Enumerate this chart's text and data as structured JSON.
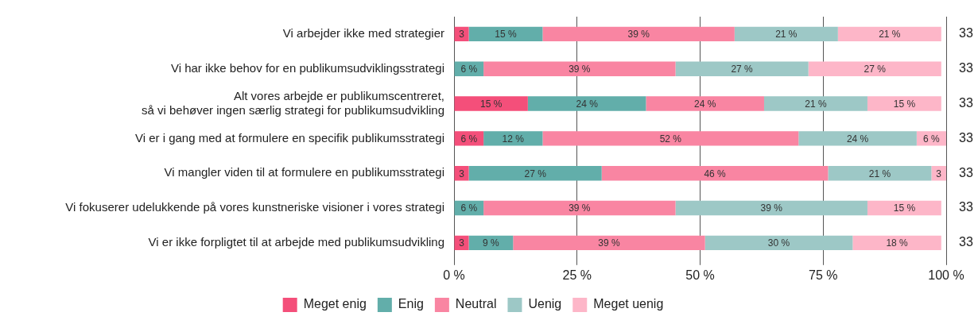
{
  "chart_data": {
    "type": "bar",
    "orientation": "horizontal",
    "stacked": true,
    "categories": [
      "Vi arbejder ikke med strategier",
      "Vi har ikke behov for en publikumsudviklingsstrategi",
      "Alt vores arbejde er publikumscentreret,\nså vi behøver ingen særlig strategi for publikumsudvikling",
      "Vi er i gang med at formulere en specifik publikumsstrategi",
      "Vi mangler viden til at formulere en publikumsstrategi",
      "Vi fokuserer udelukkende på vores kunstneriske visioner i vores strategi",
      "Vi er ikke forpligtet til at arbejde med publikumsudvikling"
    ],
    "series": [
      {
        "name": "Meget enig",
        "color": "#f44f7a",
        "values": [
          3,
          null,
          15,
          6,
          3,
          null,
          3
        ],
        "value_labels": [
          "3",
          null,
          "15 %",
          "6 %",
          "3",
          null,
          "3"
        ]
      },
      {
        "name": "Enig",
        "color": "#62aeaa",
        "values": [
          15,
          6,
          24,
          12,
          27,
          6,
          9
        ],
        "value_labels": [
          "15 %",
          "6 %",
          "24 %",
          "12 %",
          "27 %",
          "6 %",
          "9 %"
        ]
      },
      {
        "name": "Neutral",
        "color": "#f985a2",
        "values": [
          39,
          39,
          24,
          52,
          46,
          39,
          39
        ],
        "value_labels": [
          "39 %",
          "39 %",
          "24 %",
          "52 %",
          "46 %",
          "39 %",
          "39 %"
        ]
      },
      {
        "name": "Uenig",
        "color": "#9dc8c6",
        "values": [
          21,
          27,
          21,
          24,
          21,
          39,
          30
        ],
        "value_labels": [
          "21 %",
          "27 %",
          "21 %",
          "24 %",
          "21 %",
          "39 %",
          "30 %"
        ]
      },
      {
        "name": "Meget uenig",
        "color": "#fdb6c8",
        "values": [
          21,
          27,
          15,
          6,
          3,
          15,
          18
        ],
        "value_labels": [
          "21 %",
          "27 %",
          "15 %",
          "6 %",
          "3",
          "15 %",
          "18 %"
        ]
      }
    ],
    "xlim": [
      0,
      100
    ],
    "xticks": [
      {
        "value": 0,
        "label": "0 %"
      },
      {
        "value": 25,
        "label": "25 %"
      },
      {
        "value": 50,
        "label": "50 %"
      },
      {
        "value": 75,
        "label": "75 %"
      },
      {
        "value": 100,
        "label": "100 %"
      }
    ],
    "grid": "x",
    "legend": "bottom",
    "annotations": [
      "33",
      "33",
      "33",
      "33",
      "33",
      "33",
      "33"
    ]
  }
}
